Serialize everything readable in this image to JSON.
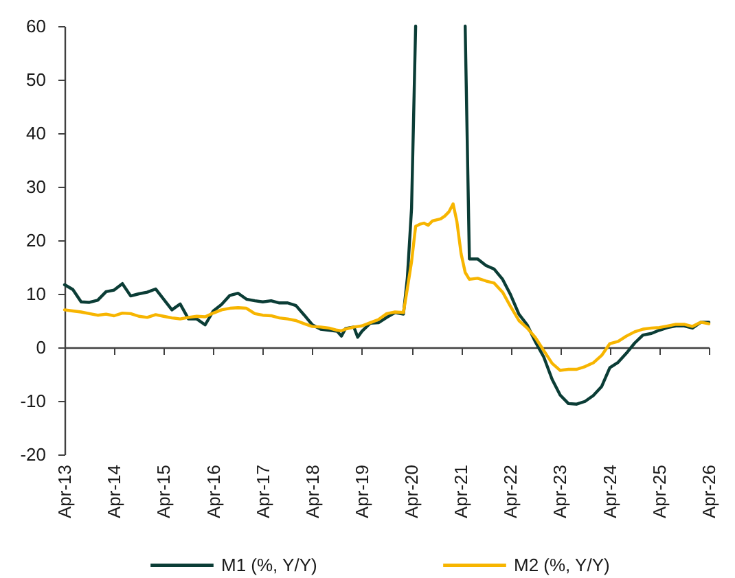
{
  "chart_data": {
    "type": "line",
    "x": [
      "2013-04",
      "2013-06",
      "2013-08",
      "2013-10",
      "2013-12",
      "2014-02",
      "2014-04",
      "2014-06",
      "2014-08",
      "2014-10",
      "2014-12",
      "2015-02",
      "2015-04",
      "2015-06",
      "2015-08",
      "2015-10",
      "2015-12",
      "2016-02",
      "2016-04",
      "2016-06",
      "2016-08",
      "2016-10",
      "2016-12",
      "2017-02",
      "2017-04",
      "2017-06",
      "2017-08",
      "2017-10",
      "2017-12",
      "2018-02",
      "2018-04",
      "2018-06",
      "2018-08",
      "2018-10",
      "2018-11",
      "2018-12",
      "2019-02",
      "2019-03",
      "2019-04",
      "2019-06",
      "2019-08",
      "2019-10",
      "2019-12",
      "2020-02",
      "2020-03",
      "2020-04",
      "2020-05",
      "2020-06",
      "2020-07",
      "2020-08",
      "2020-09",
      "2020-10",
      "2020-11",
      "2020-12",
      "2021-01",
      "2021-02",
      "2021-03",
      "2021-04",
      "2021-05",
      "2021-06",
      "2021-08",
      "2021-10",
      "2021-12",
      "2022-02",
      "2022-04",
      "2022-06",
      "2022-08",
      "2022-10",
      "2022-12",
      "2023-02",
      "2023-04",
      "2023-06",
      "2023-08",
      "2023-10",
      "2023-12",
      "2024-02",
      "2024-04",
      "2024-06",
      "2024-08",
      "2024-10",
      "2024-12",
      "2025-02",
      "2025-04",
      "2025-06",
      "2025-08",
      "2025-10",
      "2025-12",
      "2026-02",
      "2026-04"
    ],
    "series": [
      {
        "name": "M1 (%, Y/Y)",
        "color": "#0b3d36",
        "values": [
          11.7,
          10.8,
          8.5,
          8.4,
          8.8,
          10.4,
          10.7,
          11.9,
          9.6,
          10.0,
          10.3,
          10.9,
          9.0,
          7.0,
          8.1,
          5.3,
          5.3,
          4.2,
          6.8,
          8.0,
          9.7,
          10.1,
          9.0,
          8.7,
          8.5,
          8.7,
          8.3,
          8.3,
          7.8,
          6.0,
          4.2,
          3.4,
          3.2,
          3.0,
          2.1,
          3.5,
          3.8,
          1.9,
          3.0,
          4.5,
          4.6,
          5.6,
          6.5,
          6.2,
          13,
          26,
          60,
          null,
          null,
          null,
          null,
          null,
          null,
          null,
          null,
          null,
          null,
          null,
          60,
          16.5,
          16.5,
          15.3,
          14.6,
          12.7,
          9.8,
          6.2,
          4.2,
          1.0,
          -1.8,
          -6.0,
          -8.9,
          -10.5,
          -10.6,
          -10.1,
          -9.0,
          -7.3,
          -3.8,
          -2.8,
          -1.1,
          0.8,
          2.3,
          2.6,
          3.2,
          3.7,
          4.0,
          4.0,
          3.6,
          4.7,
          4.7
        ]
      },
      {
        "name": "M2 (%, Y/Y)",
        "color": "#f7b500",
        "values": [
          7.0,
          6.8,
          6.6,
          6.3,
          6.0,
          6.2,
          5.9,
          6.4,
          6.3,
          5.8,
          5.6,
          6.1,
          5.8,
          5.5,
          5.3,
          5.6,
          5.8,
          5.7,
          6.4,
          7.0,
          7.3,
          7.4,
          7.3,
          6.3,
          6.0,
          5.9,
          5.5,
          5.3,
          5.0,
          4.4,
          3.9,
          3.8,
          3.6,
          3.2,
          3.1,
          3.4,
          3.8,
          3.9,
          4.0,
          4.6,
          5.2,
          6.3,
          6.6,
          6.5,
          11,
          16,
          22.6,
          23.0,
          23.2,
          22.8,
          23.6,
          23.8,
          24.0,
          24.5,
          25.3,
          26.8,
          23.5,
          17.5,
          14.0,
          12.7,
          12.9,
          12.4,
          12.0,
          10.3,
          7.6,
          5.0,
          3.6,
          1.8,
          -0.6,
          -3.0,
          -4.3,
          -4.1,
          -4.1,
          -3.6,
          -2.9,
          -1.5,
          0.7,
          1.1,
          2.1,
          2.9,
          3.4,
          3.6,
          3.7,
          4.0,
          4.3,
          4.3,
          3.9,
          4.7,
          4.4
        ]
      }
    ],
    "xlim": [
      "2013-04",
      "2026-04"
    ],
    "xticks": [
      {
        "value": "2013-04",
        "label": "Apr-13"
      },
      {
        "value": "2014-04",
        "label": "Apr-14"
      },
      {
        "value": "2015-04",
        "label": "Apr-15"
      },
      {
        "value": "2016-04",
        "label": "Apr-16"
      },
      {
        "value": "2017-04",
        "label": "Apr-17"
      },
      {
        "value": "2018-04",
        "label": "Apr-18"
      },
      {
        "value": "2019-04",
        "label": "Apr-19"
      },
      {
        "value": "2020-04",
        "label": "Apr-20"
      },
      {
        "value": "2021-04",
        "label": "Apr-21"
      },
      {
        "value": "2022-04",
        "label": "Apr-22"
      },
      {
        "value": "2023-04",
        "label": "Apr-23"
      },
      {
        "value": "2024-04",
        "label": "Apr-24"
      },
      {
        "value": "2025-04",
        "label": "Apr-25"
      },
      {
        "value": "2026-04",
        "label": "Apr-26"
      }
    ],
    "ylim": [
      -20,
      60
    ],
    "yticks": [
      -20,
      -10,
      0,
      10,
      20,
      30,
      40,
      50,
      60
    ],
    "legend": "bottom"
  }
}
